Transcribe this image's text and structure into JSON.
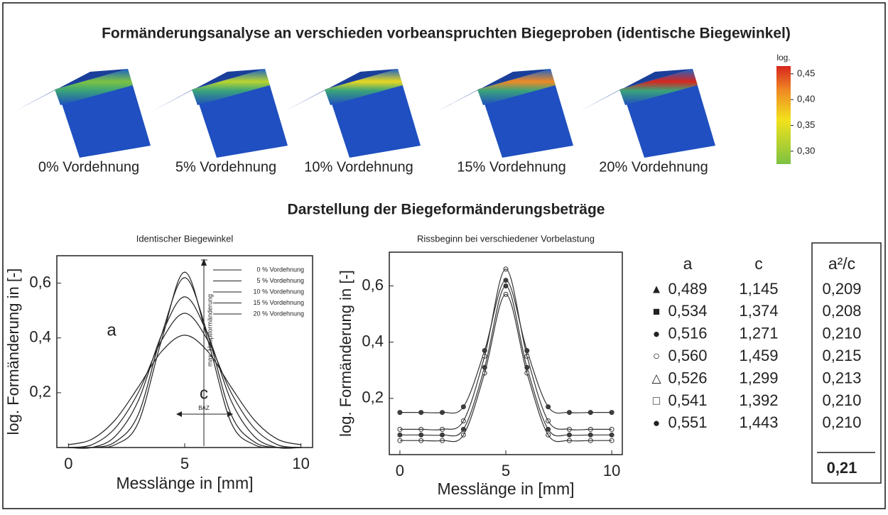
{
  "title": "Formänderungsanalyse an verschieden vorbeanspruchten Biegeproben (identische Biegewinkel)",
  "specimens": [
    "0% Vordehnung",
    "5% Vordehnung",
    "10% Vordehnung",
    "15% Vordehnung",
    "20% Vordehnung"
  ],
  "colorbar": {
    "label": "log.",
    "lim": [
      0.275,
      0.465
    ],
    "ticks": [
      {
        "value": 0.45,
        "label": "0,45"
      },
      {
        "value": 0.4,
        "label": "0,40"
      },
      {
        "value": 0.35,
        "label": "0,35"
      },
      {
        "value": 0.3,
        "label": "0,30"
      }
    ]
  },
  "section_title": "Darstellung der Biegeformänderungsbeträge",
  "chart_data": [
    {
      "type": "line",
      "title": "Identischer Biegewinkel",
      "x_label": "Messlänge in [mm]",
      "y_label": "log. Formänderung in [-]",
      "xlim": [
        -0.5,
        10.5
      ],
      "ylim": [
        0,
        0.7
      ],
      "xticks": [
        0,
        5,
        10
      ],
      "yticks": [
        {
          "value": 0.2,
          "label": "0,2"
        },
        {
          "value": 0.4,
          "label": "0,4"
        },
        {
          "value": 0.6,
          "label": "0,6"
        }
      ],
      "color": "#222222",
      "annotations": [
        "a",
        "max. Hauptformänderung",
        "c",
        "BAZ"
      ],
      "x": [
        0,
        1,
        2,
        3,
        4,
        5,
        6,
        7,
        8,
        9,
        10
      ],
      "series": [
        {
          "name": "0 % Vordehnung",
          "values": [
            0,
            0,
            0.01,
            0.09,
            0.39,
            0.64,
            0.39,
            0.09,
            0.01,
            0,
            0
          ]
        },
        {
          "name": "5 % Vordehnung",
          "values": [
            0,
            0,
            0.02,
            0.12,
            0.41,
            0.62,
            0.41,
            0.12,
            0.02,
            0,
            0
          ]
        },
        {
          "name": "10 % Vordehnung",
          "values": [
            0,
            0,
            0.04,
            0.17,
            0.41,
            0.55,
            0.41,
            0.17,
            0.04,
            0,
            0
          ]
        },
        {
          "name": "15 % Vordehnung",
          "values": [
            0,
            0.01,
            0.07,
            0.2,
            0.39,
            0.49,
            0.39,
            0.2,
            0.07,
            0.01,
            0
          ]
        },
        {
          "name": "20 % Vordehnung",
          "values": [
            0.01,
            0.03,
            0.1,
            0.22,
            0.35,
            0.41,
            0.35,
            0.22,
            0.1,
            0.03,
            0.01
          ]
        }
      ]
    },
    {
      "type": "line",
      "title": "Rissbeginn bei verschiedener Vorbelastung",
      "x_label": "Messlänge in [mm]",
      "y_label": "log. Formänderung in [-]",
      "xlim": [
        -0.5,
        10.5
      ],
      "ylim": [
        0,
        0.72
      ],
      "xticks": [
        0,
        5,
        10
      ],
      "yticks": [
        {
          "value": 0.2,
          "label": "0,2"
        },
        {
          "value": 0.4,
          "label": "0,4"
        },
        {
          "value": 0.6,
          "label": "0,6"
        }
      ],
      "color": "#333333",
      "markers": true,
      "x": [
        0,
        1,
        2,
        3,
        4,
        5,
        6,
        7,
        8,
        9,
        10
      ],
      "series": [
        {
          "values": [
            0.15,
            0.15,
            0.15,
            0.17,
            0.37,
            0.62,
            0.37,
            0.17,
            0.15,
            0.15,
            0.15
          ]
        },
        {
          "values": [
            0.09,
            0.09,
            0.09,
            0.12,
            0.35,
            0.66,
            0.35,
            0.12,
            0.09,
            0.09,
            0.09
          ]
        },
        {
          "values": [
            0.07,
            0.07,
            0.07,
            0.09,
            0.31,
            0.6,
            0.31,
            0.09,
            0.07,
            0.07,
            0.07
          ]
        },
        {
          "values": [
            0.05,
            0.05,
            0.05,
            0.07,
            0.29,
            0.57,
            0.29,
            0.07,
            0.05,
            0.05,
            0.05
          ]
        }
      ]
    }
  ],
  "table": {
    "columns": [
      "a",
      "c",
      "a²/c"
    ],
    "rows": [
      [
        "▲",
        "0,489",
        "1,145",
        "0,209"
      ],
      [
        "■",
        "0,534",
        "1,374",
        "0,208"
      ],
      [
        "●",
        "0,516",
        "1,271",
        "0,210"
      ],
      [
        "○",
        "0,560",
        "1,459",
        "0,215"
      ],
      [
        "△",
        "0,526",
        "1,299",
        "0,213"
      ],
      [
        "□",
        "0,541",
        "1,392",
        "0,210"
      ],
      [
        "●",
        "0,551",
        "1,443",
        "0,210"
      ]
    ],
    "mean": "0,21"
  }
}
